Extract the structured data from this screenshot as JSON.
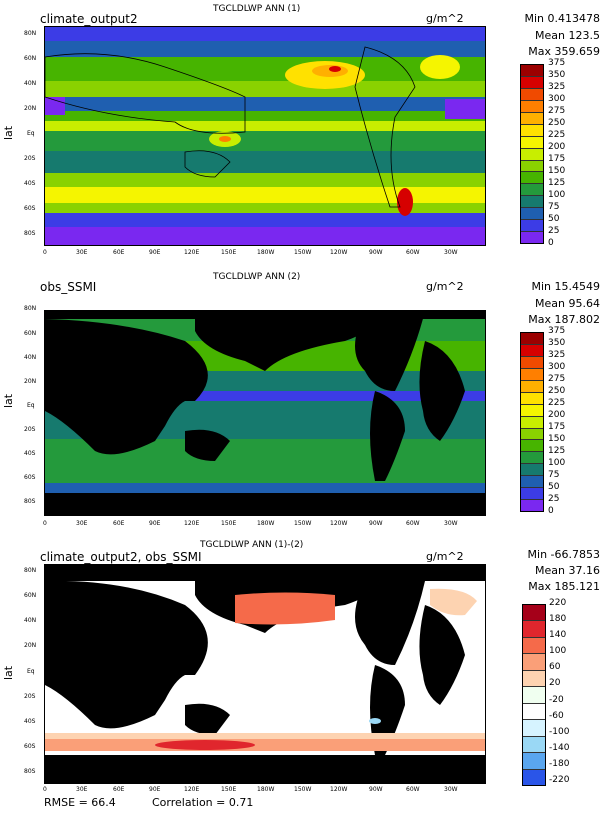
{
  "panels": [
    {
      "title": "TGCLDLWP ANN (1)",
      "left": "climate_output2",
      "units": "g/m^2",
      "stats": {
        "min": "Min 0.413478",
        "mean": "Mean 123.5",
        "max": "Max 359.659"
      },
      "ylabel": "lat",
      "colorbar": {
        "labels": [
          "375",
          "350",
          "325",
          "300",
          "275",
          "250",
          "225",
          "200",
          "175",
          "150",
          "125",
          "100",
          "75",
          "50",
          "25",
          "0"
        ],
        "colors": [
          "#9b0000",
          "#d60000",
          "#f04a00",
          "#ff7f00",
          "#ffb000",
          "#ffe100",
          "#f5f500",
          "#c8ee00",
          "#8ad200",
          "#47b400",
          "#249a3c",
          "#167a6e",
          "#1f5fb0",
          "#3c3ce6",
          "#7a28f0"
        ]
      }
    },
    {
      "title": "TGCLDLWP ANN (2)",
      "left": "obs_SSMI",
      "units": "g/m^2",
      "stats": {
        "min": "Min 15.4549",
        "mean": "Mean 95.64",
        "max": "Max 187.802"
      },
      "ylabel": "lat",
      "colorbar": {
        "labels": [
          "375",
          "350",
          "325",
          "300",
          "275",
          "250",
          "225",
          "200",
          "175",
          "150",
          "125",
          "100",
          "75",
          "50",
          "25",
          "0"
        ],
        "colors": [
          "#9b0000",
          "#d60000",
          "#f04a00",
          "#ff7f00",
          "#ffb000",
          "#ffe100",
          "#f5f500",
          "#c8ee00",
          "#8ad200",
          "#47b400",
          "#249a3c",
          "#167a6e",
          "#1f5fb0",
          "#3c3ce6",
          "#7a28f0"
        ]
      }
    },
    {
      "title": "TGCLDLWP ANN (1)-(2)",
      "left": "climate_output2, obs_SSMI",
      "units": "g/m^2",
      "stats": {
        "min": "Min -66.7853",
        "mean": "Mean 37.16",
        "max": "Max 185.121"
      },
      "ylabel": "lat",
      "colorbar": {
        "labels": [
          "220",
          "180",
          "140",
          "100",
          "60",
          "20",
          "-20",
          "-60",
          "-100",
          "-140",
          "-180",
          "-220"
        ],
        "colors": [
          "#a50019",
          "#e0262d",
          "#f56a4a",
          "#fa9f78",
          "#fdd3b1",
          "#f0fff0",
          "#ffffff",
          "#d6f3ff",
          "#9ad8f5",
          "#5aa6ef",
          "#2a55e8"
        ]
      }
    }
  ],
  "xticks": [
    "0",
    "30E",
    "60E",
    "90E",
    "120E",
    "150E",
    "180W",
    "150W",
    "120W",
    "90W",
    "60W",
    "30W"
  ],
  "yticks": [
    "80N",
    "60N",
    "40N",
    "20N",
    "Eq",
    "20S",
    "40S",
    "60S",
    "80S"
  ],
  "footer": {
    "rmse": "RMSE = 66.4",
    "corr": "Correlation = 0.71"
  },
  "chart_data": [
    {
      "type": "heatmap",
      "title": "TGCLDLWP ANN (1)",
      "case": "climate_output2",
      "units": "g/m^2",
      "min": 0.413478,
      "mean": 123.5,
      "max": 359.659,
      "contour_levels": [
        0,
        25,
        50,
        75,
        100,
        125,
        150,
        175,
        200,
        225,
        250,
        275,
        300,
        325,
        350,
        375
      ],
      "ylabel": "lat",
      "xticks": [
        "0",
        "30E",
        "60E",
        "90E",
        "120E",
        "150E",
        "180W",
        "150W",
        "120W",
        "90W",
        "60W",
        "30W"
      ],
      "yticks": [
        "80N",
        "60N",
        "40N",
        "20N",
        "Eq",
        "20S",
        "40S",
        "60S",
        "80S"
      ]
    },
    {
      "type": "heatmap",
      "title": "TGCLDLWP ANN (2)",
      "case": "obs_SSMI",
      "units": "g/m^2",
      "min": 15.4549,
      "mean": 95.64,
      "max": 187.802,
      "contour_levels": [
        0,
        25,
        50,
        75,
        100,
        125,
        150,
        175,
        200,
        225,
        250,
        275,
        300,
        325,
        350,
        375
      ],
      "ylabel": "lat"
    },
    {
      "type": "heatmap",
      "title": "TGCLDLWP ANN (1)-(2)",
      "case": "climate_output2, obs_SSMI",
      "units": "g/m^2",
      "min": -66.7853,
      "mean": 37.16,
      "max": 185.121,
      "contour_levels": [
        -220,
        -180,
        -140,
        -100,
        -60,
        -20,
        20,
        60,
        100,
        140,
        180,
        220
      ],
      "ylabel": "lat",
      "rmse": 66.4,
      "correlation": 0.71
    }
  ]
}
